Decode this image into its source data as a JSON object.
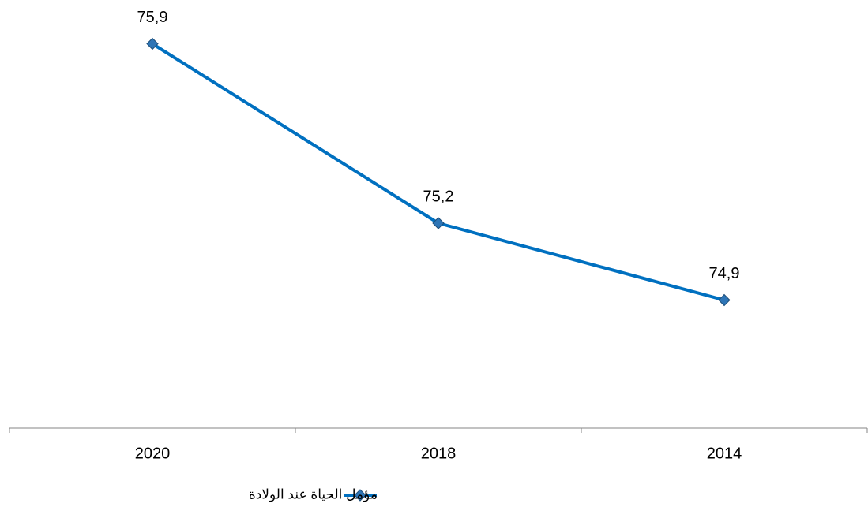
{
  "chart_data": {
    "type": "line",
    "categories": [
      "2020",
      "2018",
      "2014"
    ],
    "series": [
      {
        "name": "مؤمل الحياة عند الولادة",
        "color": "#0070c0",
        "values": [
          75.9,
          75.2,
          74.9
        ],
        "value_labels": [
          "75,9",
          "75,2",
          "74,9"
        ]
      }
    ],
    "ylim": [
      74.4,
      76.0
    ],
    "legend": "bottom"
  }
}
